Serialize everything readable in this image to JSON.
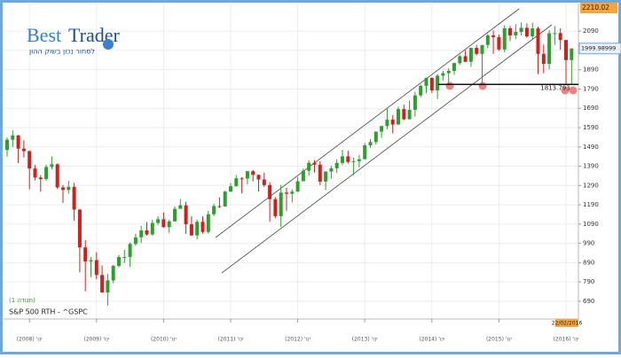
{
  "chart_data": {
    "type": "candlestick",
    "title": "S&P 500 RTH - ^GSPC",
    "subtitle": "(תנודה 1)",
    "brand": "Best",
    "brand2": "Trader",
    "tagline": "לסחור נכון בשוק ההון",
    "last_date": "22/02/2016",
    "support_level": 1813.793,
    "up_color": "#2e9e2e",
    "down_color": "#d0201c",
    "grid": true,
    "ylim": [
      607,
      2210.02
    ],
    "yticks": [
      690,
      790,
      890,
      990,
      1090,
      1190,
      1290,
      1390,
      1490,
      1590,
      1690,
      1790,
      1890,
      1990,
      2090
    ],
    "xticks": [
      {
        "value": 4,
        "label": "ינו' (2008)"
      },
      {
        "value": 16,
        "label": "ינו' (2009)"
      },
      {
        "value": 28,
        "label": "ינו' (2010)"
      },
      {
        "value": 40,
        "label": "ינו' (2011)"
      },
      {
        "value": 52,
        "label": "ינו' (2012)"
      },
      {
        "value": 64,
        "label": "ינו' (2013)"
      },
      {
        "value": 76,
        "label": "ינו' (2014)"
      },
      {
        "value": 88,
        "label": "ינו' (2015)"
      },
      {
        "value": 100,
        "label": "ינו' (2016)"
      }
    ],
    "open": [
      1474,
      1527,
      1549,
      1481,
      1468,
      1378,
      1331,
      1323,
      1386,
      1400,
      1280,
      1267,
      1283,
      1165,
      969,
      896,
      903,
      826,
      735,
      798,
      873,
      919,
      919,
      987,
      1021,
      1057,
      1036,
      1096,
      1115,
      1074,
      1104,
      1169,
      1187,
      1089,
      1031,
      1102,
      1049,
      1141,
      1183,
      1181,
      1258,
      1286,
      1327,
      1326,
      1364,
      1345,
      1321,
      1292,
      1219,
      1131,
      1253,
      1247,
      1258,
      1312,
      1366,
      1408,
      1398,
      1310,
      1362,
      1379,
      1407,
      1441,
      1412,
      1416,
      1426,
      1498,
      1515,
      1569,
      1598,
      1631,
      1606,
      1686,
      1633,
      1682,
      1757,
      1806,
      1848,
      1783,
      1859,
      1872,
      1884,
      1924,
      1960,
      1931,
      2003,
      1972,
      2018,
      2068,
      2059,
      1995,
      2105,
      2068,
      2086,
      2107,
      2063,
      2104,
      1972,
      1920,
      2079,
      2080,
      2044,
      1940
    ],
    "high": [
      1539,
      1576,
      1552,
      1524,
      1471,
      1396,
      1344,
      1397,
      1440,
      1404,
      1292,
      1314,
      1304,
      1167,
      1007,
      919,
      944,
      876,
      832,
      878,
      930,
      956,
      996,
      1040,
      1081,
      1101,
      1113,
      1130,
      1150,
      1113,
      1181,
      1220,
      1206,
      1131,
      1113,
      1130,
      1158,
      1196,
      1228,
      1263,
      1303,
      1344,
      1333,
      1365,
      1371,
      1346,
      1356,
      1307,
      1230,
      1293,
      1278,
      1270,
      1334,
      1378,
      1420,
      1422,
      1416,
      1364,
      1392,
      1426,
      1475,
      1470,
      1434,
      1448,
      1510,
      1530,
      1570,
      1598,
      1687,
      1654,
      1698,
      1709,
      1730,
      1776,
      1814,
      1849,
      1850,
      1867,
      1884,
      1897,
      1925,
      1968,
      1991,
      2005,
      2019,
      2018,
      2075,
      2093,
      2072,
      2120,
      2117,
      2126,
      2135,
      2130,
      2133,
      2113,
      2021,
      2094,
      2116,
      2104,
      2044,
      2001
    ],
    "low": [
      1439,
      1489,
      1406,
      1435,
      1270,
      1316,
      1257,
      1315,
      1373,
      1272,
      1200,
      1248,
      1107,
      840,
      741,
      815,
      804,
      735,
      667,
      783,
      866,
      888,
      869,
      978,
      992,
      1030,
      1030,
      1085,
      1071,
      1045,
      1102,
      1170,
      1040,
      1029,
      1011,
      1040,
      1040,
      1131,
      1173,
      1180,
      1257,
      1284,
      1249,
      1295,
      1311,
      1258,
      1282,
      1102,
      1120,
      1075,
      1159,
      1202,
      1258,
      1312,
      1341,
      1357,
      1292,
      1267,
      1325,
      1355,
      1396,
      1403,
      1343,
      1385,
      1426,
      1485,
      1502,
      1536,
      1581,
      1560,
      1605,
      1628,
      1633,
      1647,
      1747,
      1768,
      1770,
      1738,
      1834,
      1815,
      1863,
      1915,
      1930,
      1905,
      1965,
      1821,
      2001,
      1972,
      1988,
      1981,
      2039,
      2048,
      2067,
      2056,
      2045,
      1867,
      1872,
      1893,
      2019,
      1993,
      1812,
      1810
    ],
    "close": [
      1527,
      1549,
      1481,
      1468,
      1378,
      1331,
      1323,
      1386,
      1400,
      1280,
      1267,
      1283,
      1165,
      969,
      896,
      903,
      826,
      735,
      798,
      873,
      919,
      919,
      987,
      1021,
      1057,
      1036,
      1096,
      1115,
      1074,
      1104,
      1169,
      1187,
      1089,
      1031,
      1102,
      1049,
      1141,
      1183,
      1181,
      1258,
      1286,
      1327,
      1326,
      1364,
      1345,
      1321,
      1292,
      1219,
      1131,
      1253,
      1247,
      1258,
      1312,
      1366,
      1408,
      1398,
      1310,
      1362,
      1379,
      1407,
      1441,
      1412,
      1416,
      1426,
      1498,
      1515,
      1569,
      1598,
      1631,
      1606,
      1686,
      1633,
      1682,
      1757,
      1806,
      1848,
      1783,
      1859,
      1872,
      1884,
      1924,
      1960,
      1931,
      2003,
      1972,
      2018,
      2068,
      2059,
      1995,
      2105,
      2068,
      2086,
      2107,
      2063,
      2104,
      1972,
      1920,
      2079,
      2080,
      2044,
      1940,
      1999.98999
    ]
  }
}
